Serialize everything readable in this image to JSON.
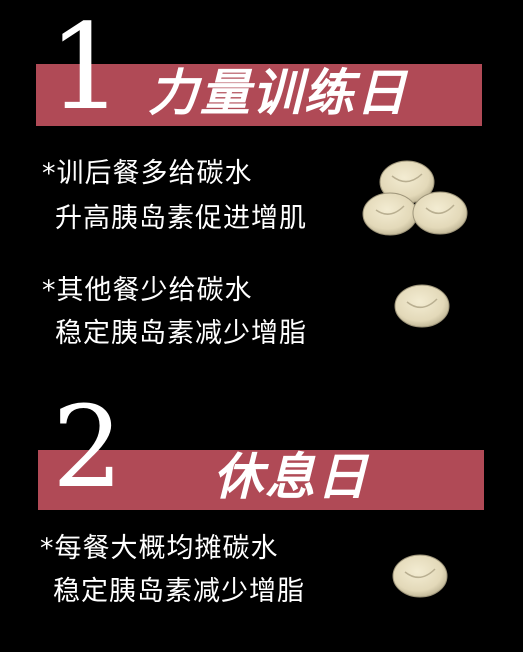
{
  "section1": {
    "number": "1",
    "title": "力量训练日",
    "notes": [
      "*训后餐多给碳水",
      "升高胰岛素促进增肌",
      "*其他餐少给碳水",
      "稳定胰岛素减少增脂"
    ],
    "icons": [
      "bun-group-icon",
      "bun-icon"
    ]
  },
  "section2": {
    "number": "2",
    "title": "休息日",
    "notes": [
      "*每餐大概均摊碳水",
      "稳定胰岛素减少增脂"
    ],
    "icons": [
      "bun-icon"
    ]
  },
  "colors": {
    "background": "#000000",
    "band": "#b04a56",
    "text": "#ffffff",
    "bun": "#e8dfc2",
    "bun_shadow": "#b8ae8e"
  }
}
